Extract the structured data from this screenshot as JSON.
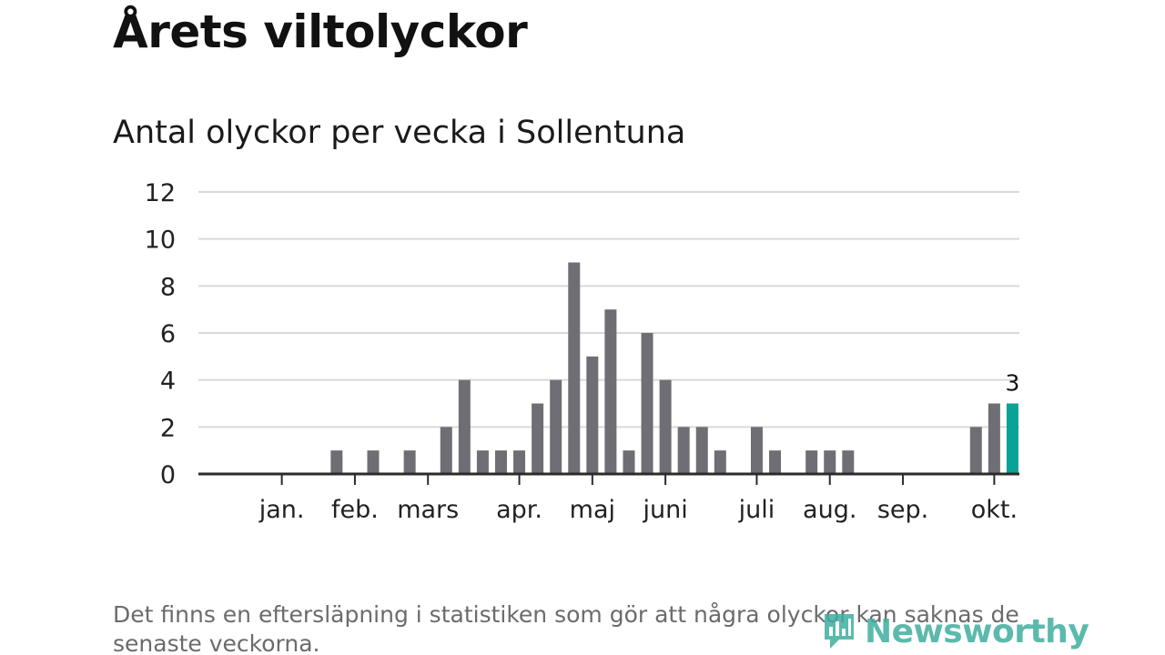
{
  "title": "Årets viltolyckor",
  "subtitle": "Antal olyckor per vecka i Sollentuna",
  "footnote": "Det finns en eftersläpning i statistiken som gör att några olyckor kan saknas de senaste veckorna.",
  "brand": {
    "name": "Newsworthy",
    "logo_icon": "newsworthy-logo-icon",
    "color": "#3fae9e"
  },
  "colors": {
    "bar": "#6f6e74",
    "highlight": "#08a296",
    "grid": "#d9d9d9",
    "axis": "#2b2b2b",
    "text": "#222222"
  },
  "chart_data": {
    "type": "bar",
    "title": "Antal olyckor per vecka i Sollentuna",
    "xlabel": "",
    "ylabel": "",
    "ylim": [
      0,
      12
    ],
    "yticks": [
      0,
      2,
      4,
      6,
      8,
      10,
      12
    ],
    "grid": true,
    "weeks": [
      1,
      2,
      3,
      4,
      5,
      6,
      7,
      8,
      9,
      10,
      11,
      12,
      13,
      14,
      15,
      16,
      17,
      18,
      19,
      20,
      21,
      22,
      23,
      24,
      25,
      26,
      27,
      28,
      29,
      30,
      31,
      32,
      33,
      34,
      35,
      36,
      37,
      38,
      39,
      40,
      41,
      42,
      43
    ],
    "values": [
      0,
      0,
      0,
      0,
      0,
      1,
      0,
      1,
      0,
      1,
      0,
      2,
      4,
      1,
      1,
      1,
      3,
      4,
      9,
      5,
      7,
      1,
      6,
      4,
      2,
      2,
      1,
      0,
      2,
      1,
      0,
      1,
      1,
      1,
      0,
      0,
      0,
      0,
      0,
      0,
      2,
      3,
      3
    ],
    "highlight_index": 42,
    "highlight_label": "3",
    "month_labels": [
      {
        "label": "jan.",
        "week": 3
      },
      {
        "label": "feb.",
        "week": 7
      },
      {
        "label": "mars",
        "week": 11
      },
      {
        "label": "apr.",
        "week": 16
      },
      {
        "label": "maj",
        "week": 20
      },
      {
        "label": "juni",
        "week": 24
      },
      {
        "label": "juli",
        "week": 29
      },
      {
        "label": "aug.",
        "week": 33
      },
      {
        "label": "sep.",
        "week": 37
      },
      {
        "label": "okt.",
        "week": 42
      }
    ]
  }
}
